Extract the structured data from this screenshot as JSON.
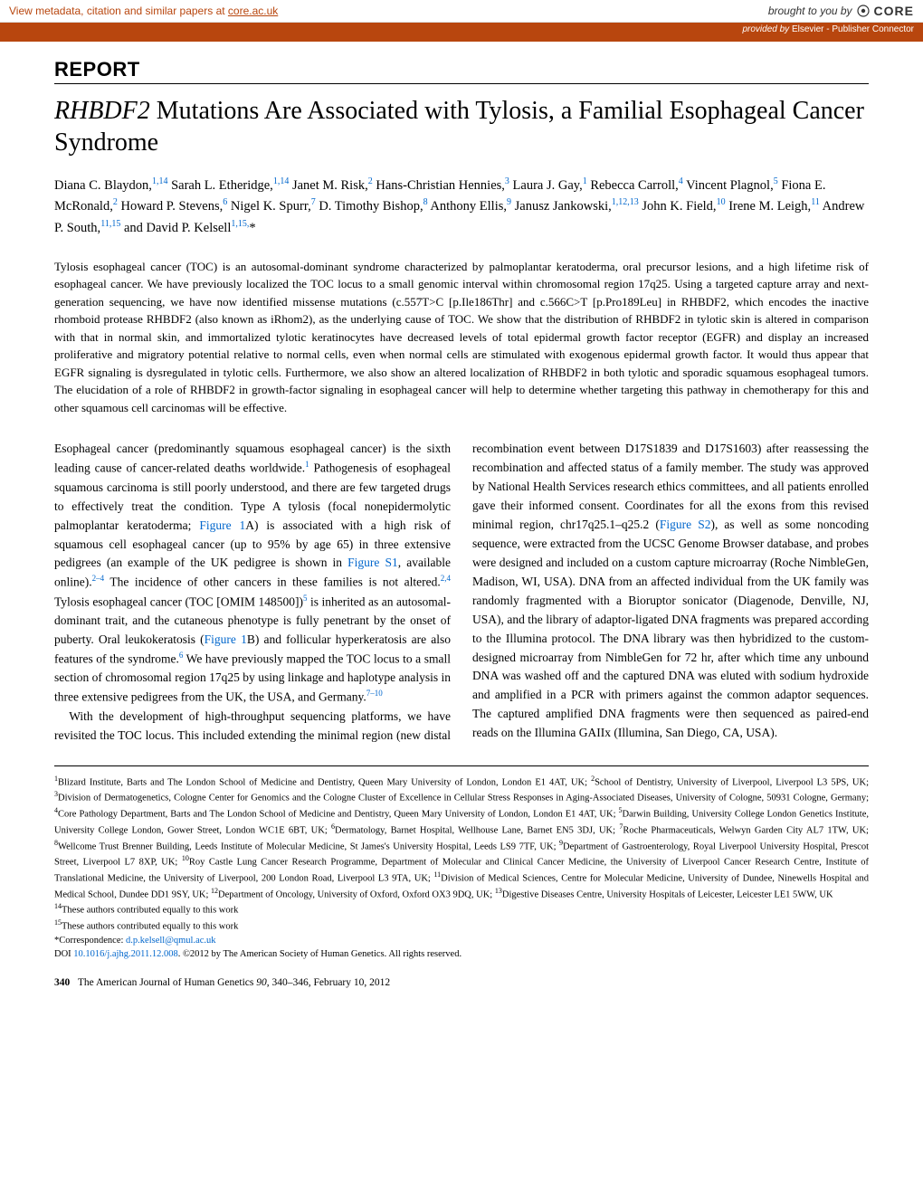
{
  "colors": {
    "accent_orange": "#b8460e",
    "link_blue": "#0066cc",
    "provided_bg": "#b8460e",
    "provided_text": "#ffffff",
    "text": "#000000",
    "bg": "#ffffff"
  },
  "core_bar": {
    "left_prefix": "View metadata, citation and similar papers at ",
    "left_link": "core.ac.uk",
    "right_prefix": "brought to you by ",
    "logo": "CORE"
  },
  "provided_bar": {
    "prefix": "provided by ",
    "source": "Elsevier - Publisher Connector"
  },
  "report_label": "REPORT",
  "title": {
    "italic": "RHBDF2",
    "rest": " Mutations Are Associated with Tylosis, a Familial Esophageal Cancer Syndrome"
  },
  "authors_html": "Diana C. Blaydon,<sup>1,14</sup> Sarah L. Etheridge,<sup>1,14</sup> Janet M. Risk,<sup>2</sup> Hans-Christian Hennies,<sup>3</sup> Laura J. Gay,<sup>1</sup> Rebecca Carroll,<sup>4</sup> Vincent Plagnol,<sup>5</sup> Fiona E. McRonald,<sup>2</sup> Howard P. Stevens,<sup>6</sup> Nigel K. Spurr,<sup>7</sup> D. Timothy Bishop,<sup>8</sup> Anthony Ellis,<sup>9</sup> Janusz Jankowski,<sup>1,12,13</sup> John K. Field,<sup>10</sup> Irene M. Leigh,<sup>11</sup> Andrew P. South,<sup>11,15</sup> and David P. Kelsell<sup>1,15,</sup>*",
  "abstract": "Tylosis esophageal cancer (TOC) is an autosomal-dominant syndrome characterized by palmoplantar keratoderma, oral precursor lesions, and a high lifetime risk of esophageal cancer. We have previously localized the TOC locus to a small genomic interval within chromosomal region 17q25. Using a targeted capture array and next-generation sequencing, we have now identified missense mutations (c.557T>C [p.Ile186Thr] and c.566C>T [p.Pro189Leu] in RHBDF2, which encodes the inactive rhomboid protease RHBDF2 (also known as iRhom2), as the underlying cause of TOC. We show that the distribution of RHBDF2 in tylotic skin is altered in comparison with that in normal skin, and immortalized tylotic keratinocytes have decreased levels of total epidermal growth factor receptor (EGFR) and display an increased proliferative and migratory potential relative to normal cells, even when normal cells are stimulated with exogenous epidermal growth factor. It would thus appear that EGFR signaling is dysregulated in tylotic cells. Furthermore, we also show an altered localization of RHBDF2 in both tylotic and sporadic squamous esophageal tumors. The elucidation of a role of RHBDF2 in growth-factor signaling in esophageal cancer will help to determine whether targeting this pathway in chemotherapy for this and other squamous cell carcinomas will be effective.",
  "body": {
    "p1": "Esophageal cancer (predominantly squamous esophageal cancer) is the sixth leading cause of cancer-related deaths worldwide.<sup class='ref'>1</sup> Pathogenesis of esophageal squamous carcinoma is still poorly understood, and there are few targeted drugs to effectively treat the condition. Type A tylosis (focal nonepidermolytic palmoplantar keratoderma; <span class='link'>Figure 1</span>A) is associated with a high risk of squamous cell esophageal cancer (up to 95% by age 65) in three extensive pedigrees (an example of the UK pedigree is shown in <span class='link'>Figure S1</span>, available online).<sup class='ref'>2–4</sup> The incidence of other cancers in these families is not altered.<sup class='ref'>2,4</sup> Tylosis esophageal cancer (TOC [OMIM 148500])<sup class='ref'>5</sup> is inherited as an autosomal-dominant trait, and the cutaneous phenotype is fully penetrant by the onset of puberty. Oral leukokeratosis (<span class='link'>Figure 1</span>B) and follicular hyperkeratosis are also features of the syndrome.<sup class='ref'>6</sup> We have previously mapped the TOC locus to a small section of chromosomal region 17q25 by using linkage and haplotype analysis in three extensive pedigrees from the UK, the USA, and Germany.<sup class='ref'>7–10</sup>",
    "p2": "With the development of high-throughput sequencing platforms, we have revisited the TOC locus. This included extending the minimal region (new distal recombination event between D17S1839 and D17S1603) after reassessing the recombination and affected status of a family member. The study was approved by National Health Services research ethics committees, and all patients enrolled gave their informed consent. Coordinates for all the exons from this revised minimal region, chr17q25.1–q25.2 (<span class='link'>Figure S2</span>), as well as some noncoding sequence, were extracted from the UCSC Genome Browser database, and probes were designed and included on a custom capture microarray (Roche NimbleGen, Madison, WI, USA). DNA from an affected individual from the UK family was randomly fragmented with a Bioruptor sonicator (Diagenode, Denville, NJ, USA), and the library of adaptor-ligated DNA fragments was prepared according to the Illumina protocol. The DNA library was then hybridized to the custom-designed microarray from NimbleGen for 72 hr, after which time any unbound DNA was washed off and the captured DNA was eluted with sodium hydroxide and amplified in a PCR with primers against the common adaptor sequences. The captured amplified DNA fragments were then sequenced as paired-end reads on the Illumina GAIIx (Illumina, San Diego, CA, USA)."
  },
  "affiliations_html": "<sup>1</sup>Blizard Institute, Barts and The London School of Medicine and Dentistry, Queen Mary University of London, London E1 4AT, UK; <sup>2</sup>School of Dentistry, University of Liverpool, Liverpool L3 5PS, UK; <sup>3</sup>Division of Dermatogenetics, Cologne Center for Genomics and the Cologne Cluster of Excellence in Cellular Stress Responses in Aging-Associated Diseases, University of Cologne, 50931 Cologne, Germany; <sup>4</sup>Core Pathology Department, Barts and The London School of Medicine and Dentistry, Queen Mary University of London, London E1 4AT, UK; <sup>5</sup>Darwin Building, University College London Genetics Institute, University College London, Gower Street, London WC1E 6BT, UK; <sup>6</sup>Dermatology, Barnet Hospital, Wellhouse Lane, Barnet EN5 3DJ, UK; <sup>7</sup>Roche Pharmaceuticals, Welwyn Garden City AL7 1TW, UK; <sup>8</sup>Wellcome Trust Brenner Building, Leeds Institute of Molecular Medicine, St James's University Hospital, Leeds LS9 7TF, UK; <sup>9</sup>Department of Gastroenterology, Royal Liverpool University Hospital, Prescot Street, Liverpool L7 8XP, UK; <sup>10</sup>Roy Castle Lung Cancer Research Programme, Department of Molecular and Clinical Cancer Medicine, the University of Liverpool Cancer Research Centre, Institute of Translational Medicine, the University of Liverpool, 200 London Road, Liverpool L3 9TA, UK; <sup>11</sup>Division of Medical Sciences, Centre for Molecular Medicine, University of Dundee, Ninewells Hospital and Medical School, Dundee DD1 9SY, UK; <sup>12</sup>Department of Oncology, University of Oxford, Oxford OX3 9DQ, UK; <sup>13</sup>Digestive Diseases Centre, University Hospitals of Leicester, Leicester LE1 5WW, UK",
  "equal_14": "These authors contributed equally to this work",
  "equal_15": "These authors contributed equally to this work",
  "correspondence_label": "*Correspondence: ",
  "correspondence_email": "d.p.kelsell@qmul.ac.uk",
  "doi_label": "DOI ",
  "doi": "10.1016/j.ajhg.2011.12.008",
  "copyright": ". ©2012 by The American Society of Human Genetics. All rights reserved.",
  "footer": {
    "page": "340",
    "journal": "The American Journal of Human Genetics",
    "vol": "90",
    "pages_date": ", 340–346, February 10, 2012"
  }
}
